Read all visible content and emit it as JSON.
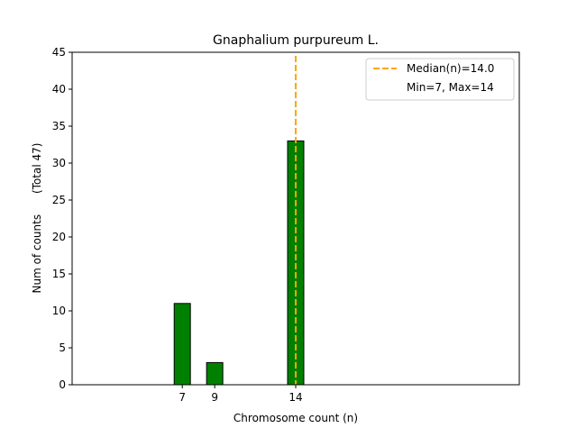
{
  "chart_data": {
    "type": "bar",
    "title": "Gnaphalium purpureum L.",
    "xlabel": "Chromosome count (n)",
    "ylabel": "Num of counts      (Total 47)",
    "x_ticks": [
      "7",
      "9",
      "14"
    ],
    "x_tick_values": [
      7,
      9,
      14
    ],
    "y_ticks": [
      "0",
      "5",
      "10",
      "15",
      "20",
      "25",
      "30",
      "35",
      "40",
      "45"
    ],
    "ylim": [
      0,
      45
    ],
    "xlim": [
      0.2,
      27.8
    ],
    "bars": [
      {
        "x": 7,
        "value": 11
      },
      {
        "x": 9,
        "value": 3
      },
      {
        "x": 14,
        "value": 33
      }
    ],
    "zero_baseline": {
      "from": 2,
      "to": 17
    },
    "median_line": {
      "x": 14.0,
      "label": "Median(n)=14.0",
      "color": "#ffa500"
    },
    "range_label": "Min=7, Max=14",
    "bar_color": "#008000",
    "legend_position": "top-right",
    "grid": false
  }
}
